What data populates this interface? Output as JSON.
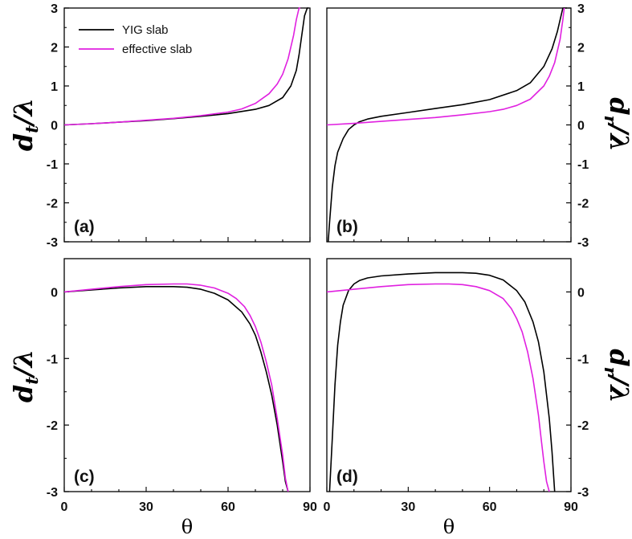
{
  "chart_data": [
    {
      "panel": "(a)",
      "type": "line",
      "ylabel_main": "d",
      "ylabel_sub": "t",
      "ylabel_tail": "/λ",
      "xlim": [
        0,
        90
      ],
      "ylim": [
        -3,
        3
      ],
      "yticks": [
        "3",
        "2",
        "1",
        "0",
        "-1",
        "-2",
        "-3"
      ],
      "xticks": [],
      "legend": [
        "YIG slab",
        "effective slab"
      ],
      "series": [
        {
          "name": "YIG slab",
          "color": "#000000",
          "x": [
            0,
            10,
            20,
            30,
            40,
            50,
            60,
            70,
            75,
            80,
            83,
            85,
            86,
            87,
            88,
            89,
            89.5
          ],
          "y": [
            0,
            0.03,
            0.07,
            0.11,
            0.16,
            0.22,
            0.29,
            0.4,
            0.5,
            0.7,
            1.0,
            1.4,
            1.8,
            2.3,
            2.8,
            3.0,
            3.0
          ]
        },
        {
          "name": "effective slab",
          "color": "#e020e0",
          "x": [
            0,
            10,
            20,
            30,
            40,
            50,
            60,
            65,
            70,
            75,
            78,
            80,
            82,
            84,
            85,
            86,
            86.5
          ],
          "y": [
            0,
            0.03,
            0.07,
            0.12,
            0.17,
            0.24,
            0.33,
            0.41,
            0.55,
            0.8,
            1.05,
            1.3,
            1.7,
            2.3,
            2.7,
            3.0,
            3.0
          ]
        }
      ]
    },
    {
      "panel": "(b)",
      "type": "line",
      "ylabel_main": "d",
      "ylabel_sub": "r",
      "ylabel_tail": "/λ",
      "xlim": [
        0,
        90
      ],
      "ylim": [
        -3,
        3
      ],
      "yticks": [
        "3",
        "2",
        "1",
        "0",
        "-1",
        "-2",
        "-3"
      ],
      "xticks": [],
      "series": [
        {
          "name": "YIG slab",
          "color": "#000000",
          "x": [
            0.5,
            1,
            2,
            3,
            4,
            6,
            8,
            10,
            12,
            15,
            20,
            30,
            40,
            50,
            60,
            70,
            75,
            80,
            83,
            85,
            86,
            87,
            88,
            88.5
          ],
          "y": [
            -3,
            -2.5,
            -1.6,
            -1.05,
            -0.7,
            -0.35,
            -0.12,
            0,
            0.08,
            0.15,
            0.22,
            0.32,
            0.42,
            0.52,
            0.65,
            0.88,
            1.08,
            1.5,
            1.95,
            2.4,
            2.7,
            3.0,
            3.0,
            3.0
          ]
        },
        {
          "name": "effective slab",
          "color": "#e020e0",
          "x": [
            0,
            10,
            20,
            30,
            40,
            50,
            60,
            65,
            70,
            75,
            80,
            82,
            84,
            86,
            87,
            87.5
          ],
          "y": [
            0,
            0.04,
            0.09,
            0.14,
            0.19,
            0.26,
            0.34,
            0.4,
            0.5,
            0.66,
            1.0,
            1.25,
            1.6,
            2.2,
            2.7,
            3.0
          ]
        }
      ]
    },
    {
      "panel": "(c)",
      "type": "line",
      "ylabel_main": "d",
      "ylabel_sub": "t",
      "ylabel_tail": "/λ",
      "xlim": [
        0,
        90
      ],
      "ylim": [
        -3,
        0.5
      ],
      "yticks": [
        "0",
        "-1",
        "-2",
        "-3"
      ],
      "xticks": [
        "0",
        "30",
        "60",
        "90"
      ],
      "xlabel": "θ",
      "series": [
        {
          "name": "YIG slab",
          "color": "#000000",
          "x": [
            0,
            10,
            20,
            30,
            40,
            45,
            50,
            55,
            60,
            65,
            68,
            70,
            72,
            74,
            76,
            78,
            80,
            81,
            82
          ],
          "y": [
            0,
            0.03,
            0.06,
            0.08,
            0.08,
            0.07,
            0.04,
            -0.02,
            -0.12,
            -0.3,
            -0.48,
            -0.65,
            -0.9,
            -1.2,
            -1.55,
            -2.0,
            -2.55,
            -2.85,
            -3.0
          ]
        },
        {
          "name": "effective slab",
          "color": "#e020e0",
          "x": [
            0,
            10,
            20,
            30,
            40,
            45,
            50,
            55,
            60,
            63,
            66,
            68,
            70,
            72,
            74,
            76,
            78,
            80,
            81,
            82
          ],
          "y": [
            0,
            0.04,
            0.08,
            0.11,
            0.12,
            0.12,
            0.1,
            0.06,
            -0.02,
            -0.1,
            -0.22,
            -0.35,
            -0.52,
            -0.75,
            -1.05,
            -1.4,
            -1.9,
            -2.45,
            -2.8,
            -3.0
          ]
        }
      ]
    },
    {
      "panel": "(d)",
      "type": "line",
      "ylabel_main": "d",
      "ylabel_sub": "r",
      "ylabel_tail": "/λ",
      "xlim": [
        0,
        90
      ],
      "ylim": [
        -3,
        0.5
      ],
      "yticks": [
        "0",
        "-1",
        "-2",
        "-3"
      ],
      "xticks": [
        "0",
        "30",
        "60",
        "90"
      ],
      "xlabel": "θ",
      "series": [
        {
          "name": "YIG slab",
          "color": "#000000",
          "x": [
            1,
            2,
            3,
            4,
            5,
            6,
            8,
            10,
            12,
            15,
            20,
            30,
            40,
            50,
            55,
            60,
            65,
            70,
            73,
            76,
            78,
            80,
            82,
            83,
            84
          ],
          "y": [
            -3,
            -2.2,
            -1.4,
            -0.8,
            -0.45,
            -0.2,
            0.02,
            0.12,
            0.17,
            0.21,
            0.24,
            0.27,
            0.29,
            0.29,
            0.28,
            0.25,
            0.18,
            0.02,
            -0.15,
            -0.45,
            -0.75,
            -1.2,
            -1.9,
            -2.4,
            -3.0
          ]
        },
        {
          "name": "effective slab",
          "color": "#e020e0",
          "x": [
            0,
            10,
            20,
            30,
            40,
            45,
            50,
            55,
            60,
            65,
            68,
            70,
            72,
            74,
            76,
            78,
            79,
            80,
            81,
            82
          ],
          "y": [
            0,
            0.04,
            0.08,
            0.11,
            0.12,
            0.12,
            0.11,
            0.08,
            0.02,
            -0.1,
            -0.25,
            -0.4,
            -0.6,
            -0.9,
            -1.3,
            -1.85,
            -2.2,
            -2.55,
            -2.85,
            -3.0
          ]
        }
      ]
    }
  ]
}
